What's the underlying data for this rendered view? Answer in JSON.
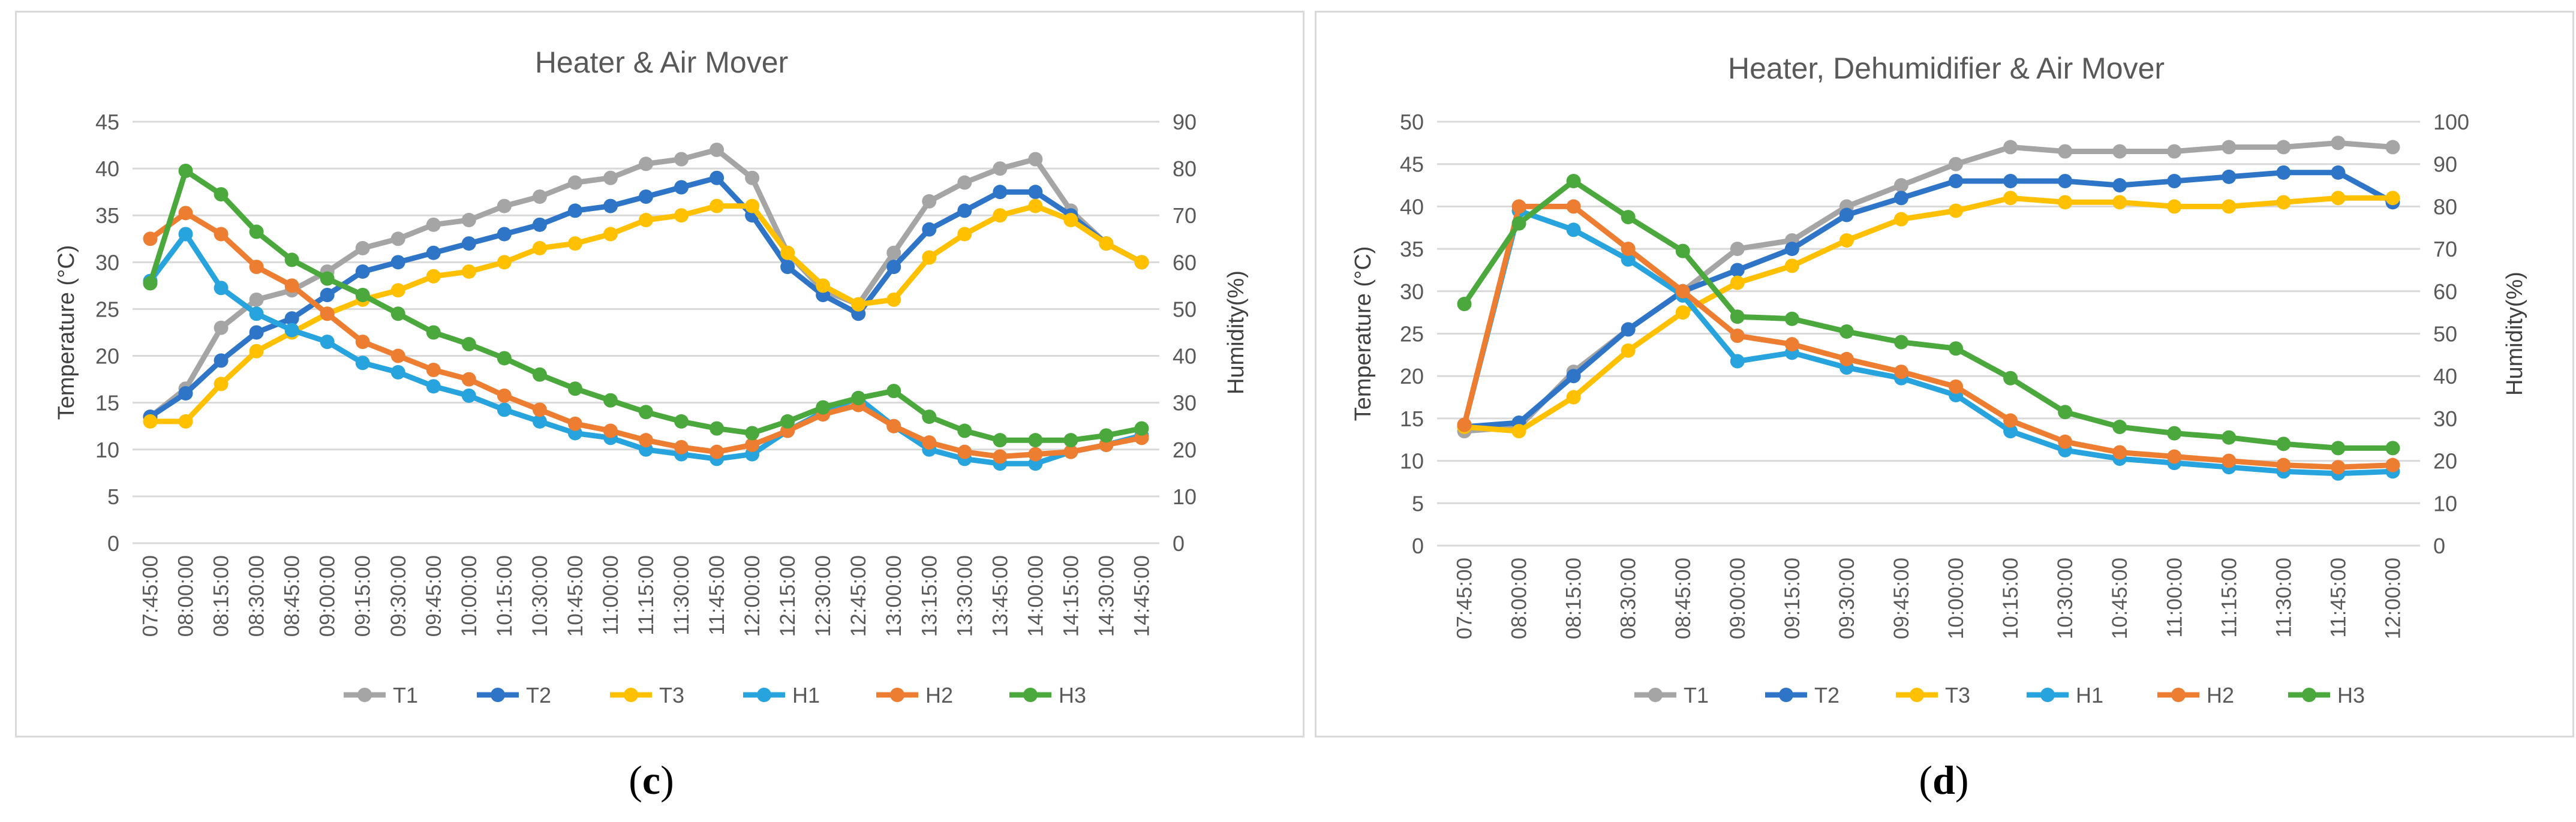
{
  "captions": {
    "c": "c",
    "d": "d"
  },
  "chart_data": [
    {
      "id": "c",
      "type": "line",
      "title": "Heater & Air Mover",
      "ylabel": "Temperature (°C)",
      "y2label": "Humidity(%)",
      "ylim": [
        0,
        45
      ],
      "yticks": [
        0,
        5,
        10,
        15,
        20,
        25,
        30,
        35,
        40,
        45
      ],
      "y2lim": [
        0,
        90
      ],
      "y2ticks": [
        0,
        10,
        20,
        30,
        40,
        50,
        60,
        70,
        80,
        90
      ],
      "grid": true,
      "legend_position": "bottom",
      "categories": [
        "07:45:00",
        "08:00:00",
        "08:15:00",
        "08:30:00",
        "08:45:00",
        "09:00:00",
        "09:15:00",
        "09:30:00",
        "09:45:00",
        "10:00:00",
        "10:15:00",
        "10:30:00",
        "10:45:00",
        "11:00:00",
        "11:15:00",
        "11:30:00",
        "11:45:00",
        "12:00:00",
        "12:15:00",
        "12:30:00",
        "12:45:00",
        "13:00:00",
        "13:15:00",
        "13:30:00",
        "13:45:00",
        "14:00:00",
        "14:15:00",
        "14:30:00",
        "14:45:00"
      ],
      "series": [
        {
          "name": "T1",
          "axis": "left",
          "color": "#a5a5a5",
          "values": [
            13.5,
            16.5,
            23,
            26,
            27,
            29,
            31.5,
            32.5,
            34,
            34.5,
            36,
            37,
            38.5,
            39,
            40.5,
            41,
            42,
            39,
            31,
            27,
            25.5,
            31,
            36.5,
            38.5,
            40,
            41,
            35.5,
            32,
            30
          ]
        },
        {
          "name": "T2",
          "axis": "left",
          "color": "#2e75c8",
          "values": [
            13.5,
            16,
            19.5,
            22.5,
            24,
            26.5,
            29,
            30,
            31,
            32,
            33,
            34,
            35.5,
            36,
            37,
            38,
            39,
            35,
            29.5,
            26.5,
            24.5,
            29.5,
            33.5,
            35.5,
            37.5,
            37.5,
            35,
            32,
            30
          ]
        },
        {
          "name": "T3",
          "axis": "left",
          "color": "#ffc000",
          "values": [
            13,
            13,
            17,
            20.5,
            22.5,
            24.5,
            26,
            27,
            28.5,
            29,
            30,
            31.5,
            32,
            33,
            34.5,
            35,
            36,
            36,
            31,
            27.5,
            25.5,
            26,
            30.5,
            33,
            35,
            36,
            34.5,
            32,
            30
          ]
        },
        {
          "name": "H1",
          "axis": "right",
          "color": "#27a3dd",
          "values": [
            56,
            66,
            54.5,
            49,
            45.5,
            43,
            38.5,
            36.5,
            33.5,
            31.5,
            28.5,
            26,
            23.5,
            22.5,
            20,
            19,
            18,
            19,
            24,
            28,
            31,
            25,
            20,
            18,
            17,
            17,
            19.5,
            21,
            23
          ]
        },
        {
          "name": "H2",
          "axis": "right",
          "color": "#ed7d31",
          "values": [
            65,
            70.5,
            66,
            59,
            55,
            49,
            43,
            40,
            37,
            35,
            31.5,
            28.5,
            25.5,
            24,
            22,
            20.5,
            19.5,
            21,
            24,
            27.5,
            29.5,
            25,
            21.5,
            19.5,
            18.5,
            19,
            19.5,
            21,
            22.5
          ]
        },
        {
          "name": "H3",
          "axis": "right",
          "color": "#4aa83c",
          "values": [
            55.5,
            79.5,
            74.5,
            66.5,
            60.5,
            56.5,
            53,
            49,
            45,
            42.5,
            39.5,
            36,
            33,
            30.5,
            28,
            26,
            24.5,
            23.5,
            26,
            29,
            31,
            32.5,
            27,
            24,
            22,
            22,
            22,
            23,
            24.5
          ]
        }
      ]
    },
    {
      "id": "d",
      "type": "line",
      "title": "Heater, Dehumidifier & Air Mover",
      "ylabel": "Temperature (°C)",
      "y2label": "Humidity(%)",
      "ylim": [
        0,
        50
      ],
      "yticks": [
        0,
        5,
        10,
        15,
        20,
        25,
        30,
        35,
        40,
        45,
        50
      ],
      "y2lim": [
        0,
        100
      ],
      "y2ticks": [
        0,
        10,
        20,
        30,
        40,
        50,
        60,
        70,
        80,
        90,
        100
      ],
      "grid": true,
      "legend_position": "bottom",
      "categories": [
        "07:45:00",
        "08:00:00",
        "08:15:00",
        "08:30:00",
        "08:45:00",
        "09:00:00",
        "09:15:00",
        "09:30:00",
        "09:45:00",
        "10:00:00",
        "10:15:00",
        "10:30:00",
        "10:45:00",
        "11:00:00",
        "11:15:00",
        "11:30:00",
        "11:45:00",
        "12:00:00"
      ],
      "series": [
        {
          "name": "T1",
          "axis": "left",
          "color": "#a5a5a5",
          "values": [
            13.5,
            14,
            20.5,
            25.5,
            30,
            35,
            36,
            40,
            42.5,
            45,
            47,
            46.5,
            46.5,
            46.5,
            47,
            47,
            47.5,
            47
          ]
        },
        {
          "name": "T2",
          "axis": "left",
          "color": "#2e75c8",
          "values": [
            14,
            14.5,
            20,
            25.5,
            30,
            32.5,
            35,
            39,
            41,
            43,
            43,
            43,
            42.5,
            43,
            43.5,
            44,
            44,
            40.5
          ]
        },
        {
          "name": "T3",
          "axis": "left",
          "color": "#ffc000",
          "values": [
            14,
            13.5,
            17.5,
            23,
            27.5,
            31,
            33,
            36,
            38.5,
            39.5,
            41,
            40.5,
            40.5,
            40,
            40,
            40.5,
            41,
            41
          ]
        },
        {
          "name": "H1",
          "axis": "right",
          "color": "#27a3dd",
          "values": [
            28.5,
            79,
            74.5,
            67.5,
            59,
            43.5,
            45.5,
            42,
            39.5,
            35.5,
            27,
            22.5,
            20.5,
            19.5,
            18.5,
            17.5,
            17,
            17.5
          ]
        },
        {
          "name": "H2",
          "axis": "right",
          "color": "#ed7d31",
          "values": [
            28.5,
            80,
            80,
            70,
            60,
            49.5,
            47.5,
            44,
            41,
            37.5,
            29.5,
            24.5,
            22,
            21,
            20,
            19,
            18.5,
            19
          ]
        },
        {
          "name": "H3",
          "axis": "right",
          "color": "#4aa83c",
          "values": [
            57,
            76,
            86,
            77.5,
            69.5,
            54,
            53.5,
            50.5,
            48,
            46.5,
            39.5,
            31.5,
            28,
            26.5,
            25.5,
            24,
            23,
            23
          ]
        }
      ]
    }
  ]
}
